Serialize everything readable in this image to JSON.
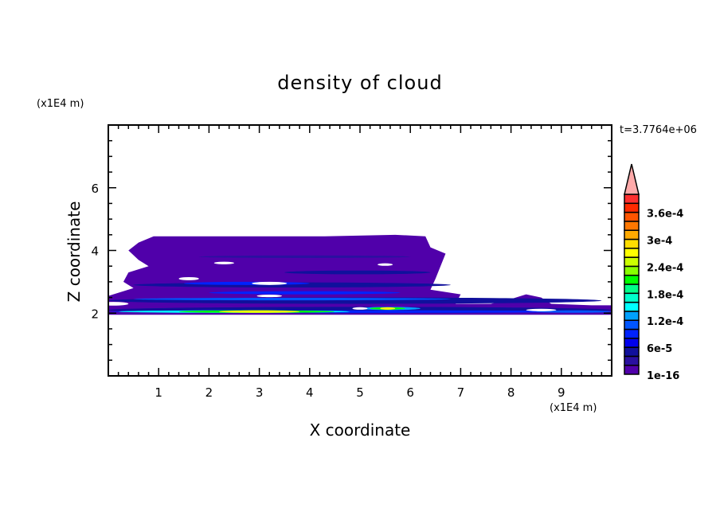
{
  "chart_data": {
    "type": "heatmap",
    "subtype": "filled-contour",
    "title": "density of cloud",
    "xlabel": "X coordinate",
    "ylabel": "Z coordinate",
    "x_unit": "(x1E4 m)",
    "y_unit": "(x1E4 m)",
    "time_label": "t=3.7764e+06",
    "xlim": [
      0,
      10
    ],
    "ylim": [
      0,
      8
    ],
    "xticks": [
      "1",
      "2",
      "3",
      "4",
      "5",
      "6",
      "7",
      "8",
      "9"
    ],
    "yticks": [
      "2",
      "4",
      "6"
    ],
    "x_minor_step": 0.2,
    "y_minor_step": 0.5,
    "grid": false,
    "colorbar": {
      "placement": "right",
      "levels": [
        1e-16,
        2e-05,
        4e-05,
        6e-05,
        8e-05,
        0.0001,
        0.00012,
        0.00014,
        0.00016,
        0.00018,
        0.0002,
        0.00022,
        0.00024,
        0.00026,
        0.00028,
        0.0003,
        0.00032,
        0.00034,
        0.00036,
        0.00038,
        0.0004
      ],
      "tick_labels": [
        {
          "level": 0,
          "text": "1e-16"
        },
        {
          "level": 3,
          "text": "6e-5"
        },
        {
          "level": 6,
          "text": "1.2e-4"
        },
        {
          "level": 9,
          "text": "1.8e-4"
        },
        {
          "level": 12,
          "text": "2.4e-4"
        },
        {
          "level": 15,
          "text": "3e-4"
        },
        {
          "level": 18,
          "text": "3.6e-4"
        }
      ],
      "colors": [
        "#5000aa",
        "#2a10a0",
        "#10109c",
        "#0000ee",
        "#0022ff",
        "#0055ff",
        "#00a0ff",
        "#00ffff",
        "#00ffcc",
        "#00ff88",
        "#00ff00",
        "#88ff00",
        "#ccff00",
        "#ffff00",
        "#ffdd00",
        "#ffaa00",
        "#ff7700",
        "#ff5500",
        "#ff2a00",
        "#ff3030"
      ],
      "over_color": "#ffaaaa"
    },
    "cloud_outline": [
      [
        0,
        1.95
      ],
      [
        10,
        1.95
      ],
      [
        10,
        2.25
      ],
      [
        9.6,
        2.25
      ],
      [
        8.8,
        2.3
      ],
      [
        8.6,
        2.5
      ],
      [
        8.3,
        2.6
      ],
      [
        8.0,
        2.45
      ],
      [
        7.6,
        2.3
      ],
      [
        6.9,
        2.3
      ],
      [
        7.0,
        2.6
      ],
      [
        6.4,
        2.75
      ],
      [
        6.5,
        3.1
      ],
      [
        6.6,
        3.5
      ],
      [
        6.7,
        3.9
      ],
      [
        6.4,
        4.1
      ],
      [
        6.3,
        4.45
      ],
      [
        5.7,
        4.5
      ],
      [
        4.3,
        4.45
      ],
      [
        3.3,
        4.45
      ],
      [
        2.0,
        4.45
      ],
      [
        0.9,
        4.45
      ],
      [
        0.6,
        4.25
      ],
      [
        0.4,
        4.0
      ],
      [
        0.6,
        3.7
      ],
      [
        0.8,
        3.5
      ],
      [
        0.4,
        3.3
      ],
      [
        0.3,
        3.0
      ],
      [
        0.5,
        2.8
      ],
      [
        0.1,
        2.6
      ],
      [
        0,
        2.55
      ]
    ],
    "holes": [
      [
        0.1,
        2.3,
        0.3,
        0.06
      ],
      [
        1.6,
        3.1,
        0.2,
        0.05
      ],
      [
        3.2,
        2.95,
        0.35,
        0.05
      ],
      [
        3.2,
        2.55,
        0.25,
        0.04
      ],
      [
        5.5,
        3.55,
        0.15,
        0.04
      ],
      [
        5.0,
        2.15,
        0.15,
        0.04
      ],
      [
        8.6,
        2.1,
        0.3,
        0.04
      ],
      [
        2.3,
        3.6,
        0.2,
        0.04
      ]
    ],
    "streaks": [
      {
        "x": [
          1.8,
          6.0
        ],
        "z": 3.8,
        "dz": 0.04,
        "level": 1
      },
      {
        "x": [
          3.5,
          6.4
        ],
        "z": 3.3,
        "dz": 0.06,
        "level": 2
      },
      {
        "x": [
          0.5,
          6.8
        ],
        "z": 2.9,
        "dz": 0.08,
        "level": 2
      },
      {
        "x": [
          1.5,
          4.0
        ],
        "z": 2.95,
        "dz": 0.05,
        "level": 4
      },
      {
        "x": [
          2.0,
          5.8
        ],
        "z": 2.65,
        "dz": 0.05,
        "level": 4
      },
      {
        "x": [
          0.0,
          9.8
        ],
        "z": 2.4,
        "dz": 0.1,
        "level": 2
      },
      {
        "x": [
          0.5,
          6.8
        ],
        "z": 2.45,
        "dz": 0.04,
        "level": 5
      },
      {
        "x": [
          0.0,
          10.0
        ],
        "z": 2.1,
        "dz": 0.1,
        "level": 2
      },
      {
        "x": [
          0.0,
          10.0
        ],
        "z": 2.05,
        "dz": 0.04,
        "level": 4
      },
      {
        "x": [
          0.2,
          4.8
        ],
        "z": 2.05,
        "dz": 0.04,
        "level": 7
      },
      {
        "x": [
          1.4,
          4.5
        ],
        "z": 2.05,
        "dz": 0.03,
        "level": 10
      },
      {
        "x": [
          2.2,
          3.8
        ],
        "z": 2.05,
        "dz": 0.02,
        "level": 13
      },
      {
        "x": [
          5.0,
          6.2
        ],
        "z": 2.15,
        "dz": 0.05,
        "level": 6
      },
      {
        "x": [
          5.2,
          5.9
        ],
        "z": 2.15,
        "dz": 0.03,
        "level": 10
      },
      {
        "x": [
          5.4,
          5.7
        ],
        "z": 2.15,
        "dz": 0.02,
        "level": 13
      },
      {
        "x": [
          8.5,
          10.0
        ],
        "z": 2.05,
        "dz": 0.03,
        "level": 5
      }
    ]
  }
}
